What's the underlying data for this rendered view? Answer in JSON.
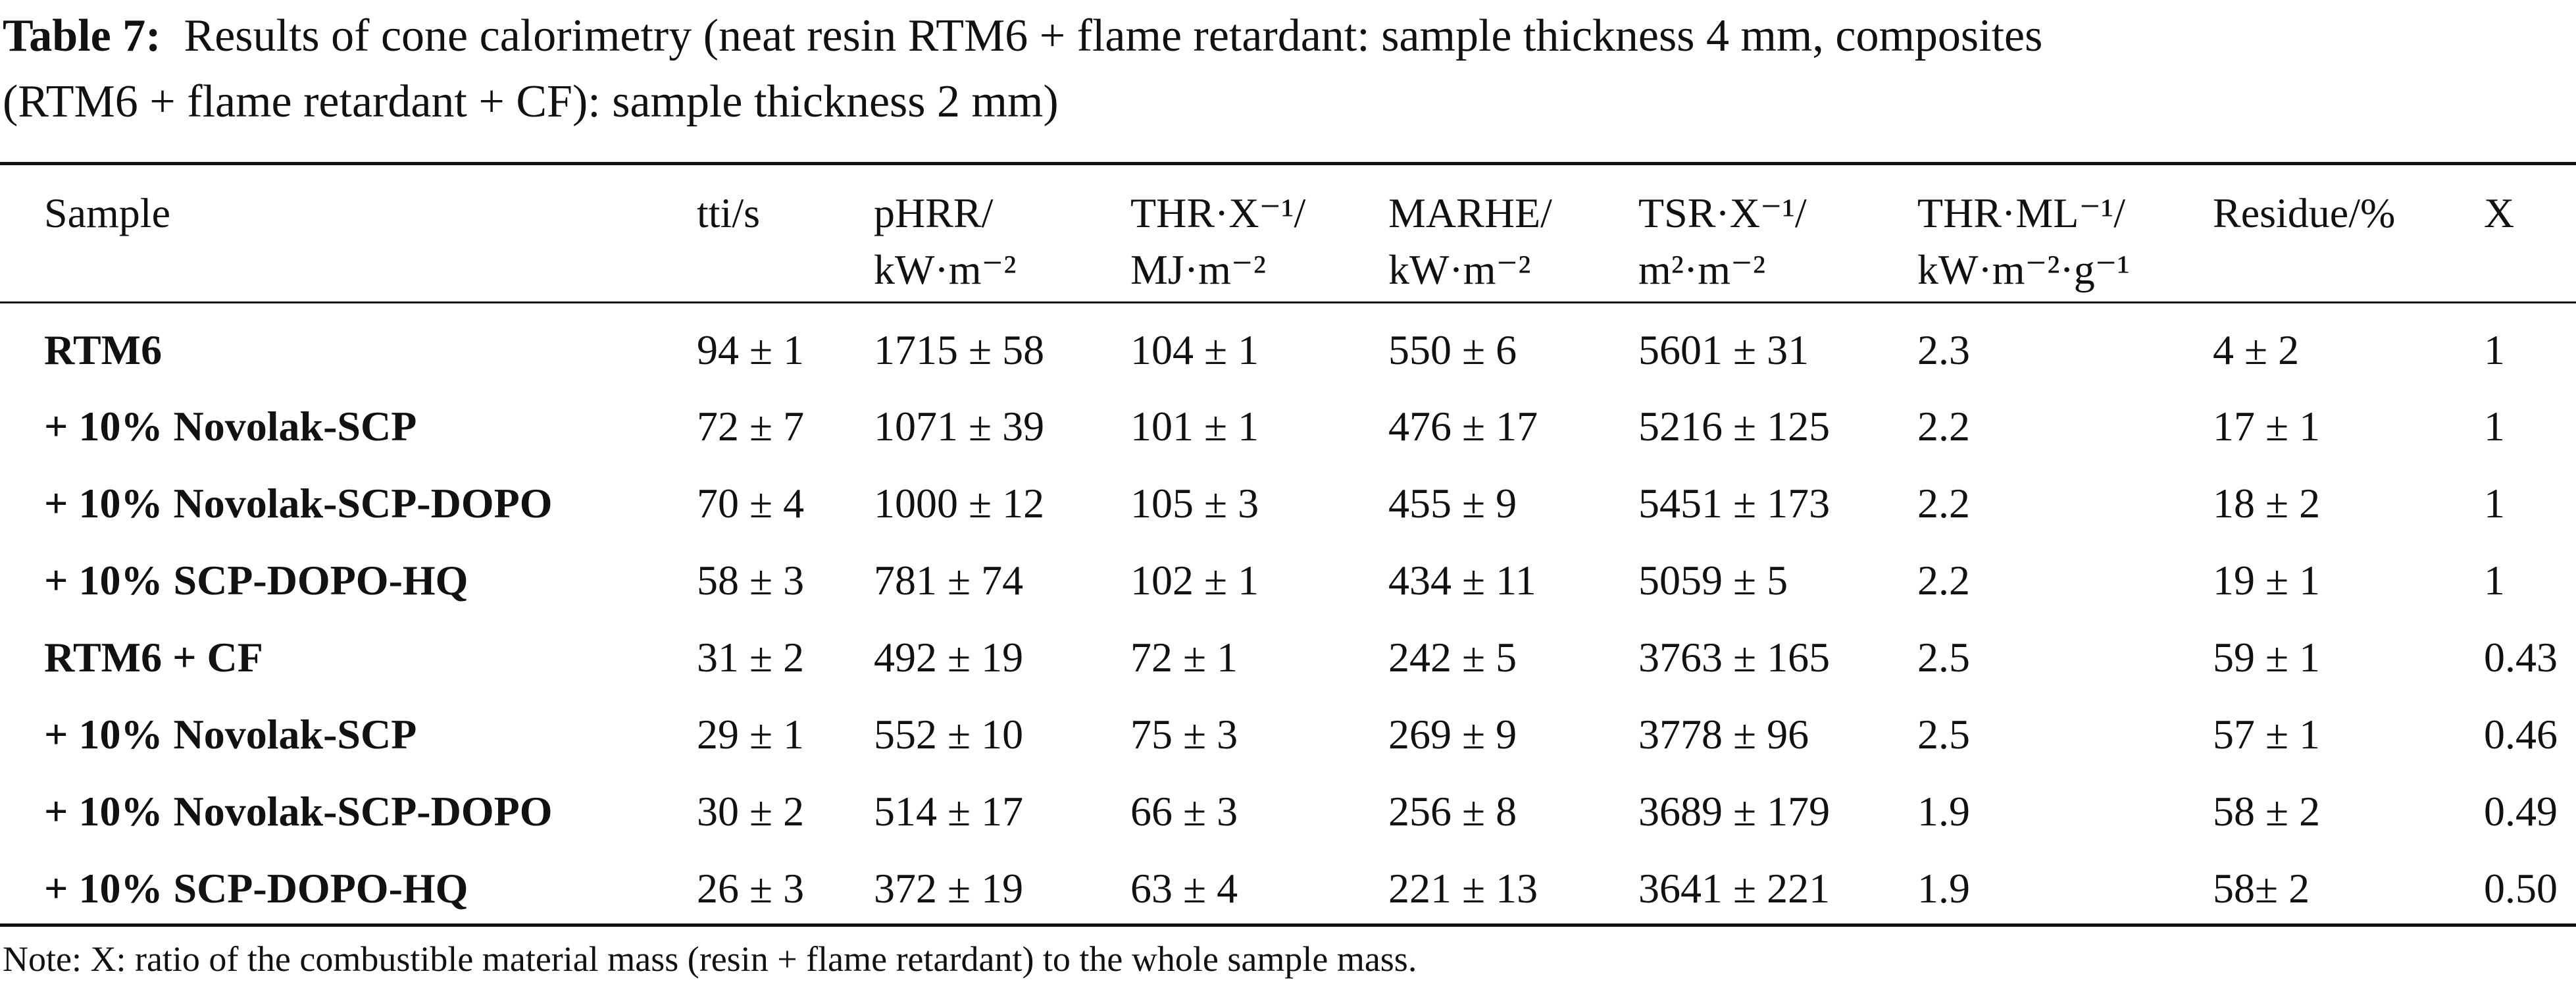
{
  "caption": {
    "label": "Table 7:",
    "lines": [
      "Results of cone calorimetry (neat resin RTM6 + flame retardant: sample thickness 4 mm, composites",
      "(RTM6 + flame retardant + CF): sample thickness 2 mm)"
    ]
  },
  "table": {
    "header": [
      [
        "Sample"
      ],
      [
        "tti/s"
      ],
      [
        "pHRR/",
        "kW·m⁻²"
      ],
      [
        "THR·X⁻¹/",
        "MJ·m⁻²"
      ],
      [
        "MARHE/",
        "kW·m⁻²"
      ],
      [
        "TSR·X⁻¹/",
        "m²·m⁻²"
      ],
      [
        "THR·ML⁻¹/",
        "kW·m⁻²·g⁻¹"
      ],
      [
        "Residue/%"
      ],
      [
        "X"
      ]
    ],
    "rows": [
      [
        "RTM6",
        "94 ± 1",
        "1715 ± 58",
        "104 ± 1",
        "550 ± 6",
        "5601 ± 31",
        "2.3",
        "4 ± 2",
        "1"
      ],
      [
        "+ 10% Novolak-SCP",
        "72 ± 7",
        "1071 ± 39",
        "101 ± 1",
        "476 ± 17",
        "5216 ± 125",
        "2.2",
        "17 ± 1",
        "1"
      ],
      [
        "+ 10% Novolak-SCP-DOPO",
        "70 ± 4",
        "1000 ± 12",
        "105 ± 3",
        "455 ± 9",
        "5451 ± 173",
        "2.2",
        "18 ± 2",
        "1"
      ],
      [
        "+ 10% SCP-DOPO-HQ",
        "58 ± 3",
        "781 ± 74",
        "102 ± 1",
        "434 ± 11",
        "5059 ± 5",
        "2.2",
        "19 ± 1",
        "1"
      ],
      [
        "RTM6 + CF",
        "31 ± 2",
        "492 ± 19",
        "72 ± 1",
        "242 ± 5",
        "3763 ± 165",
        "2.5",
        "59 ± 1",
        "0.43"
      ],
      [
        "+ 10% Novolak-SCP",
        "29 ± 1",
        "552 ± 10",
        "75 ± 3",
        "269 ± 9",
        "3778 ± 96",
        "2.5",
        "57 ± 1",
        "0.46"
      ],
      [
        "+ 10% Novolak-SCP-DOPO",
        "30 ± 2",
        "514 ± 17",
        "66 ± 3",
        "256 ± 8",
        "3689 ± 179",
        "1.9",
        "58 ± 2",
        "0.49"
      ],
      [
        "+ 10% SCP-DOPO-HQ",
        "26 ± 3",
        "372 ± 19",
        "63 ± 4",
        "221 ± 13",
        "3641 ± 221",
        "1.9",
        "58± 2",
        "0.50"
      ]
    ]
  },
  "note": "Note: X: ratio of the combustible material mass (resin + flame retardant) to the whole sample mass."
}
